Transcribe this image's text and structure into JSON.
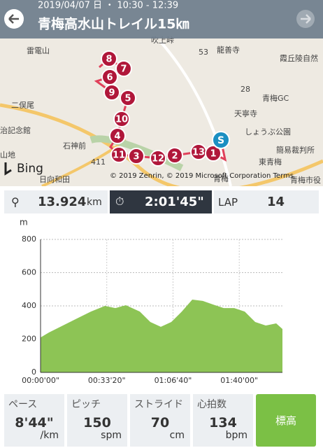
{
  "header": {
    "date": "2019/04/07 日 ・ 10:30 - 12:39",
    "title": "青梅高水山トレイル15㎞"
  },
  "map": {
    "labels": [
      "雷電山",
      "吹上峠",
      "龍善寺",
      "霞丘陵自然",
      "青梅GC",
      "天寧寺",
      "しょうぶ公園",
      "簡易裁判所",
      "東青梅",
      "二俣尾",
      "石神前",
      "日向和田",
      "青梅",
      "53",
      "28",
      "411",
      "治記念館",
      "山地",
      "青梅市役"
    ],
    "markers": [
      "8",
      "7",
      "6",
      "9",
      "5",
      "10",
      "4",
      "11",
      "3",
      "12",
      "2",
      "13",
      "1",
      "S"
    ],
    "bing": "Bing",
    "copyright": "© 2019 Zenrin, © 2019 Microsoft Corporation  Terms"
  },
  "stats": {
    "distance": "13.924",
    "distance_unit": "km",
    "time": "2:01'45\"",
    "lap_label": "LAP",
    "lap": "14"
  },
  "chart": {
    "type": "area",
    "y_unit": "m",
    "color": "#8dc455",
    "x": [
      0,
      253,
      676,
      1098,
      1520,
      1943,
      2259,
      2576,
      2998,
      3315,
      3632,
      3948,
      4265,
      4582,
      4899,
      5215,
      5532,
      5849,
      6166,
      6482,
      6799,
      7116,
      7305
    ],
    "values": [
      210,
      240,
      282,
      324,
      366,
      400,
      387,
      404,
      366,
      303,
      274,
      303,
      366,
      438,
      430,
      408,
      387,
      387,
      366,
      303,
      282,
      295,
      261
    ],
    "xlim": [
      0,
      7305
    ],
    "ylim": [
      0,
      800
    ],
    "yticks": [
      0,
      200,
      400,
      600,
      800
    ],
    "xticks": [
      {
        "value": 0,
        "label": "00:00'00\""
      },
      {
        "value": 2000,
        "label": "00:33'20\""
      },
      {
        "value": 4000,
        "label": "01:06'40\""
      },
      {
        "value": 6000,
        "label": "01:40'00\""
      }
    ]
  },
  "bottom": [
    {
      "label": "ペース",
      "value": "8'44\"",
      "unit": "/km"
    },
    {
      "label": "ピッチ",
      "value": "150",
      "unit": "spm"
    },
    {
      "label": "ストライド",
      "value": "70",
      "unit": "cm"
    },
    {
      "label": "心拍数",
      "value": "134",
      "unit": "bpm"
    }
  ],
  "button": "標高"
}
